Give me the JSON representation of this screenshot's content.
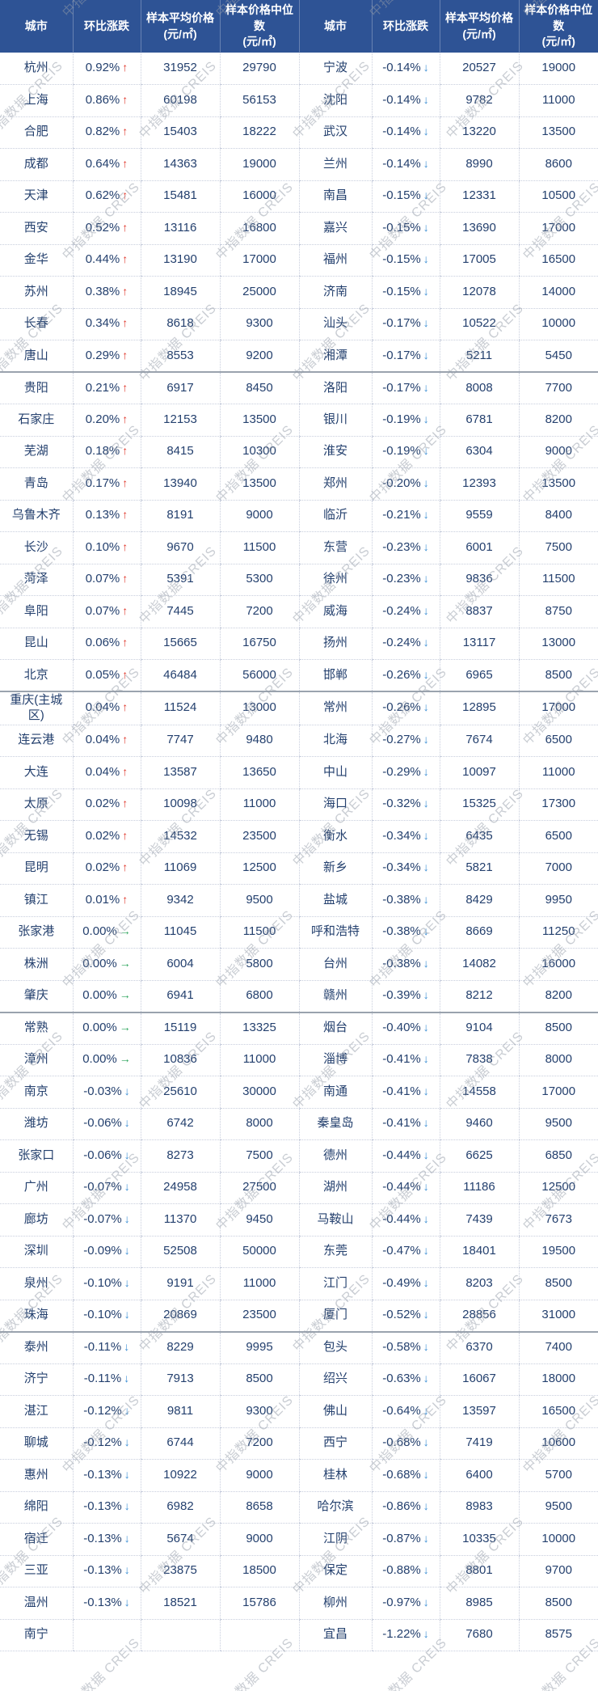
{
  "watermark": {
    "text": "中指数据 CREIS"
  },
  "colors": {
    "header_bg": "#2e5395",
    "header_text": "#ffffff",
    "body_text": "#24406e",
    "up": "#e03b2f",
    "down": "#3d8fd4",
    "flat": "#2aa45b",
    "grid_line": "#c8cedd",
    "group_line": "#9aa3ae"
  },
  "chart_data": {
    "type": "table",
    "group_size": 10,
    "arrows": {
      "up": "↑",
      "down": "↓",
      "flat": "→"
    },
    "header": {
      "city": "城市",
      "change": "环比涨跌",
      "avg_title": "样本平均价格",
      "avg_unit": "(元/㎡)",
      "median_title": "样本价格中位数",
      "median_unit": "(元/㎡)"
    },
    "left_rows": [
      {
        "city": "杭州",
        "change": "0.92%",
        "dir": "up",
        "avg": "31952",
        "median": "29790"
      },
      {
        "city": "上海",
        "change": "0.86%",
        "dir": "up",
        "avg": "60198",
        "median": "56153"
      },
      {
        "city": "合肥",
        "change": "0.82%",
        "dir": "up",
        "avg": "15403",
        "median": "18222"
      },
      {
        "city": "成都",
        "change": "0.64%",
        "dir": "up",
        "avg": "14363",
        "median": "19000"
      },
      {
        "city": "天津",
        "change": "0.62%",
        "dir": "up",
        "avg": "15481",
        "median": "16000"
      },
      {
        "city": "西安",
        "change": "0.52%",
        "dir": "up",
        "avg": "13116",
        "median": "16800"
      },
      {
        "city": "金华",
        "change": "0.44%",
        "dir": "up",
        "avg": "13190",
        "median": "17000"
      },
      {
        "city": "苏州",
        "change": "0.38%",
        "dir": "up",
        "avg": "18945",
        "median": "25000"
      },
      {
        "city": "长春",
        "change": "0.34%",
        "dir": "up",
        "avg": "8618",
        "median": "9300"
      },
      {
        "city": "唐山",
        "change": "0.29%",
        "dir": "up",
        "avg": "8553",
        "median": "9200"
      },
      {
        "city": "贵阳",
        "change": "0.21%",
        "dir": "up",
        "avg": "6917",
        "median": "8450"
      },
      {
        "city": "石家庄",
        "change": "0.20%",
        "dir": "up",
        "avg": "12153",
        "median": "13500"
      },
      {
        "city": "芜湖",
        "change": "0.18%",
        "dir": "up",
        "avg": "8415",
        "median": "10300"
      },
      {
        "city": "青岛",
        "change": "0.17%",
        "dir": "up",
        "avg": "13940",
        "median": "13500"
      },
      {
        "city": "乌鲁木齐",
        "change": "0.13%",
        "dir": "up",
        "avg": "8191",
        "median": "9000"
      },
      {
        "city": "长沙",
        "change": "0.10%",
        "dir": "up",
        "avg": "9670",
        "median": "11500"
      },
      {
        "city": "菏泽",
        "change": "0.07%",
        "dir": "up",
        "avg": "5391",
        "median": "5300"
      },
      {
        "city": "阜阳",
        "change": "0.07%",
        "dir": "up",
        "avg": "7445",
        "median": "7200"
      },
      {
        "city": "昆山",
        "change": "0.06%",
        "dir": "up",
        "avg": "15665",
        "median": "16750"
      },
      {
        "city": "北京",
        "change": "0.05%",
        "dir": "up",
        "avg": "46484",
        "median": "56000"
      },
      {
        "city": "重庆(主城区)",
        "change": "0.04%",
        "dir": "up",
        "avg": "11524",
        "median": "13000"
      },
      {
        "city": "连云港",
        "change": "0.04%",
        "dir": "up",
        "avg": "7747",
        "median": "9480"
      },
      {
        "city": "大连",
        "change": "0.04%",
        "dir": "up",
        "avg": "13587",
        "median": "13650"
      },
      {
        "city": "太原",
        "change": "0.02%",
        "dir": "up",
        "avg": "10098",
        "median": "11000"
      },
      {
        "city": "无锡",
        "change": "0.02%",
        "dir": "up",
        "avg": "14532",
        "median": "23500"
      },
      {
        "city": "昆明",
        "change": "0.02%",
        "dir": "up",
        "avg": "11069",
        "median": "12500"
      },
      {
        "city": "镇江",
        "change": "0.01%",
        "dir": "up",
        "avg": "9342",
        "median": "9500"
      },
      {
        "city": "张家港",
        "change": "0.00%",
        "dir": "flat",
        "avg": "11045",
        "median": "11500"
      },
      {
        "city": "株洲",
        "change": "0.00%",
        "dir": "flat",
        "avg": "6004",
        "median": "5800"
      },
      {
        "city": "肇庆",
        "change": "0.00%",
        "dir": "flat",
        "avg": "6941",
        "median": "6800"
      },
      {
        "city": "常熟",
        "change": "0.00%",
        "dir": "flat",
        "avg": "15119",
        "median": "13325"
      },
      {
        "city": "漳州",
        "change": "0.00%",
        "dir": "flat",
        "avg": "10836",
        "median": "11000"
      },
      {
        "city": "南京",
        "change": "-0.03%",
        "dir": "down",
        "avg": "25610",
        "median": "30000"
      },
      {
        "city": "潍坊",
        "change": "-0.06%",
        "dir": "down",
        "avg": "6742",
        "median": "8000"
      },
      {
        "city": "张家口",
        "change": "-0.06%",
        "dir": "down",
        "avg": "8273",
        "median": "7500"
      },
      {
        "city": "广州",
        "change": "-0.07%",
        "dir": "down",
        "avg": "24958",
        "median": "27500"
      },
      {
        "city": "廊坊",
        "change": "-0.07%",
        "dir": "down",
        "avg": "11370",
        "median": "9450"
      },
      {
        "city": "深圳",
        "change": "-0.09%",
        "dir": "down",
        "avg": "52508",
        "median": "50000"
      },
      {
        "city": "泉州",
        "change": "-0.10%",
        "dir": "down",
        "avg": "9191",
        "median": "11000"
      },
      {
        "city": "珠海",
        "change": "-0.10%",
        "dir": "down",
        "avg": "20869",
        "median": "23500"
      },
      {
        "city": "泰州",
        "change": "-0.11%",
        "dir": "down",
        "avg": "8229",
        "median": "9995"
      },
      {
        "city": "济宁",
        "change": "-0.11%",
        "dir": "down",
        "avg": "7913",
        "median": "8500"
      },
      {
        "city": "湛江",
        "change": "-0.12%",
        "dir": "down",
        "avg": "9811",
        "median": "9300"
      },
      {
        "city": "聊城",
        "change": "-0.12%",
        "dir": "down",
        "avg": "6744",
        "median": "7200"
      },
      {
        "city": "惠州",
        "change": "-0.13%",
        "dir": "down",
        "avg": "10922",
        "median": "9000"
      },
      {
        "city": "绵阳",
        "change": "-0.13%",
        "dir": "down",
        "avg": "6982",
        "median": "8658"
      },
      {
        "city": "宿迁",
        "change": "-0.13%",
        "dir": "down",
        "avg": "5674",
        "median": "9000"
      },
      {
        "city": "三亚",
        "change": "-0.13%",
        "dir": "down",
        "avg": "23875",
        "median": "18500"
      },
      {
        "city": "温州",
        "change": "-0.13%",
        "dir": "down",
        "avg": "18521",
        "median": "15786"
      },
      {
        "city": "南宁",
        "change": "",
        "dir": "",
        "avg": "",
        "median": ""
      }
    ],
    "right_rows": [
      {
        "city": "宁波",
        "change": "-0.14%",
        "dir": "down",
        "avg": "20527",
        "median": "19000"
      },
      {
        "city": "沈阳",
        "change": "-0.14%",
        "dir": "down",
        "avg": "9782",
        "median": "11000"
      },
      {
        "city": "武汉",
        "change": "-0.14%",
        "dir": "down",
        "avg": "13220",
        "median": "13500"
      },
      {
        "city": "兰州",
        "change": "-0.14%",
        "dir": "down",
        "avg": "8990",
        "median": "8600"
      },
      {
        "city": "南昌",
        "change": "-0.15%",
        "dir": "down",
        "avg": "12331",
        "median": "10500"
      },
      {
        "city": "嘉兴",
        "change": "-0.15%",
        "dir": "down",
        "avg": "13690",
        "median": "17000"
      },
      {
        "city": "福州",
        "change": "-0.15%",
        "dir": "down",
        "avg": "17005",
        "median": "16500"
      },
      {
        "city": "济南",
        "change": "-0.15%",
        "dir": "down",
        "avg": "12078",
        "median": "14000"
      },
      {
        "city": "汕头",
        "change": "-0.17%",
        "dir": "down",
        "avg": "10522",
        "median": "10000"
      },
      {
        "city": "湘潭",
        "change": "-0.17%",
        "dir": "down",
        "avg": "5211",
        "median": "5450"
      },
      {
        "city": "洛阳",
        "change": "-0.17%",
        "dir": "down",
        "avg": "8008",
        "median": "7700"
      },
      {
        "city": "银川",
        "change": "-0.19%",
        "dir": "down",
        "avg": "6781",
        "median": "8200"
      },
      {
        "city": "淮安",
        "change": "-0.19%",
        "dir": "down",
        "avg": "6304",
        "median": "9000"
      },
      {
        "city": "郑州",
        "change": "-0.20%",
        "dir": "down",
        "avg": "12393",
        "median": "13500"
      },
      {
        "city": "临沂",
        "change": "-0.21%",
        "dir": "down",
        "avg": "9559",
        "median": "8400"
      },
      {
        "city": "东营",
        "change": "-0.23%",
        "dir": "down",
        "avg": "6001",
        "median": "7500"
      },
      {
        "city": "徐州",
        "change": "-0.23%",
        "dir": "down",
        "avg": "9836",
        "median": "11500"
      },
      {
        "city": "威海",
        "change": "-0.24%",
        "dir": "down",
        "avg": "8837",
        "median": "8750"
      },
      {
        "city": "扬州",
        "change": "-0.24%",
        "dir": "down",
        "avg": "13117",
        "median": "13000"
      },
      {
        "city": "邯郸",
        "change": "-0.26%",
        "dir": "down",
        "avg": "6965",
        "median": "8500"
      },
      {
        "city": "常州",
        "change": "-0.26%",
        "dir": "down",
        "avg": "12895",
        "median": "17000"
      },
      {
        "city": "北海",
        "change": "-0.27%",
        "dir": "down",
        "avg": "7674",
        "median": "6500"
      },
      {
        "city": "中山",
        "change": "-0.29%",
        "dir": "down",
        "avg": "10097",
        "median": "11000"
      },
      {
        "city": "海口",
        "change": "-0.32%",
        "dir": "down",
        "avg": "15325",
        "median": "17300"
      },
      {
        "city": "衡水",
        "change": "-0.34%",
        "dir": "down",
        "avg": "6435",
        "median": "6500"
      },
      {
        "city": "新乡",
        "change": "-0.34%",
        "dir": "down",
        "avg": "5821",
        "median": "7000"
      },
      {
        "city": "盐城",
        "change": "-0.38%",
        "dir": "down",
        "avg": "8429",
        "median": "9950"
      },
      {
        "city": "呼和浩特",
        "change": "-0.38%",
        "dir": "down",
        "avg": "8669",
        "median": "11250"
      },
      {
        "city": "台州",
        "change": "-0.38%",
        "dir": "down",
        "avg": "14082",
        "median": "16000"
      },
      {
        "city": "赣州",
        "change": "-0.39%",
        "dir": "down",
        "avg": "8212",
        "median": "8200"
      },
      {
        "city": "烟台",
        "change": "-0.40%",
        "dir": "down",
        "avg": "9104",
        "median": "8500"
      },
      {
        "city": "淄博",
        "change": "-0.41%",
        "dir": "down",
        "avg": "7838",
        "median": "8000"
      },
      {
        "city": "南通",
        "change": "-0.41%",
        "dir": "down",
        "avg": "14558",
        "median": "17000"
      },
      {
        "city": "秦皇岛",
        "change": "-0.41%",
        "dir": "down",
        "avg": "9460",
        "median": "9500"
      },
      {
        "city": "德州",
        "change": "-0.44%",
        "dir": "down",
        "avg": "6625",
        "median": "6850"
      },
      {
        "city": "湖州",
        "change": "-0.44%",
        "dir": "down",
        "avg": "11186",
        "median": "12500"
      },
      {
        "city": "马鞍山",
        "change": "-0.44%",
        "dir": "down",
        "avg": "7439",
        "median": "7673"
      },
      {
        "city": "东莞",
        "change": "-0.47%",
        "dir": "down",
        "avg": "18401",
        "median": "19500"
      },
      {
        "city": "江门",
        "change": "-0.49%",
        "dir": "down",
        "avg": "8203",
        "median": "8500"
      },
      {
        "city": "厦门",
        "change": "-0.52%",
        "dir": "down",
        "avg": "28856",
        "median": "31000"
      },
      {
        "city": "包头",
        "change": "-0.58%",
        "dir": "down",
        "avg": "6370",
        "median": "7400"
      },
      {
        "city": "绍兴",
        "change": "-0.63%",
        "dir": "down",
        "avg": "16067",
        "median": "18000"
      },
      {
        "city": "佛山",
        "change": "-0.64%",
        "dir": "down",
        "avg": "13597",
        "median": "16500"
      },
      {
        "city": "西宁",
        "change": "-0.68%",
        "dir": "down",
        "avg": "7419",
        "median": "10600"
      },
      {
        "city": "桂林",
        "change": "-0.68%",
        "dir": "down",
        "avg": "6400",
        "median": "5700"
      },
      {
        "city": "哈尔滨",
        "change": "-0.86%",
        "dir": "down",
        "avg": "8983",
        "median": "9500"
      },
      {
        "city": "江阴",
        "change": "-0.87%",
        "dir": "down",
        "avg": "10335",
        "median": "10000"
      },
      {
        "city": "保定",
        "change": "-0.88%",
        "dir": "down",
        "avg": "8801",
        "median": "9700"
      },
      {
        "city": "柳州",
        "change": "-0.97%",
        "dir": "down",
        "avg": "8985",
        "median": "8500"
      },
      {
        "city": "宜昌",
        "change": "-1.22%",
        "dir": "down",
        "avg": "7680",
        "median": "8575"
      }
    ]
  }
}
